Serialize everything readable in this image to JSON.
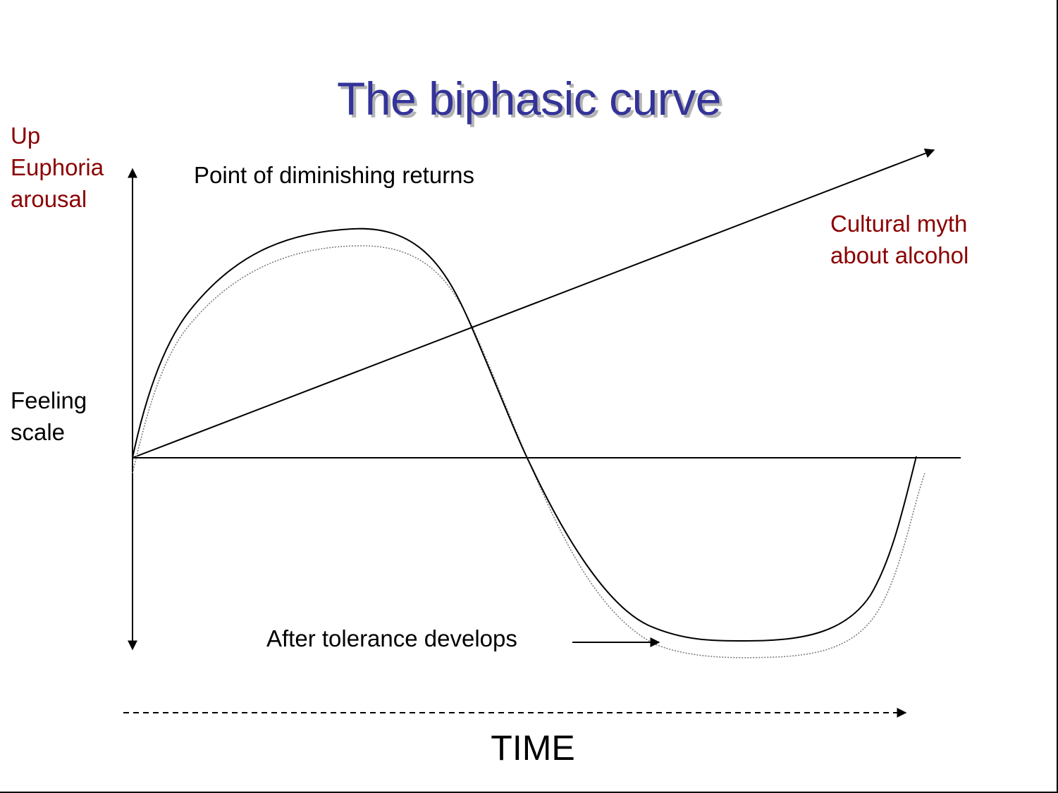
{
  "title": "The biphasic curve",
  "y_axis": {
    "top_labels": [
      "Up",
      "Euphoria",
      "arousal"
    ],
    "side_label": [
      "Feeling",
      "scale"
    ]
  },
  "annotations": {
    "peak": "Point of diminishing returns",
    "myth": [
      "Cultural myth",
      "about alcohol"
    ],
    "tolerance": "After tolerance develops"
  },
  "x_axis": {
    "label": "TIME"
  },
  "colors": {
    "title": "#333399",
    "title_shadow": "#b3b3b3",
    "label_dark_red": "#8b0000",
    "text": "#000000",
    "lines": "#000000",
    "tolerance_curve": "#777777"
  }
}
